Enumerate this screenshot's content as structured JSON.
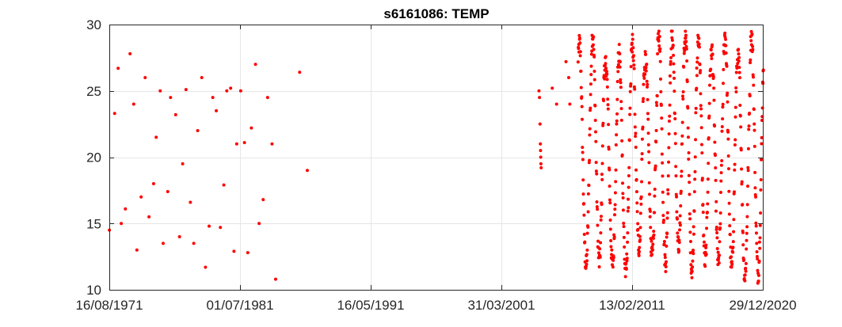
{
  "chart_data": {
    "type": "scatter",
    "title": "s6161086: TEMP",
    "xlabel": "",
    "ylabel": "",
    "x_type": "date",
    "xlim": [
      "1971-08-16",
      "2020-12-29"
    ],
    "ylim": [
      10,
      30
    ],
    "x_ticks": [
      "1971-08-16",
      "1981-07-01",
      "1991-05-16",
      "2001-03-31",
      "2011-02-13",
      "2020-12-29"
    ],
    "x_tick_labels": [
      "16/08/1971",
      "01/07/1981",
      "16/05/1991",
      "31/03/2001",
      "13/02/2011",
      "29/12/2020"
    ],
    "y_ticks": [
      10,
      15,
      20,
      25,
      30
    ],
    "y_tick_labels": [
      "10",
      "15",
      "20",
      "25",
      "30"
    ],
    "grid": true,
    "marker_color": "#ff0000",
    "series": [
      {
        "name": "",
        "points": [
          [
            "1971-08-18",
            14.5
          ],
          [
            "1972-01-10",
            23.3
          ],
          [
            "1972-04-15",
            26.7
          ],
          [
            "1972-07-10",
            15.0
          ],
          [
            "1972-11-01",
            16.1
          ],
          [
            "1973-03-10",
            27.8
          ],
          [
            "1973-06-20",
            24.0
          ],
          [
            "1973-09-15",
            13.0
          ],
          [
            "1974-01-10",
            17.0
          ],
          [
            "1974-05-01",
            26.0
          ],
          [
            "1974-08-15",
            15.5
          ],
          [
            "1974-12-20",
            18.0
          ],
          [
            "1975-03-01",
            21.5
          ],
          [
            "1975-06-20",
            25.0
          ],
          [
            "1975-09-10",
            13.5
          ],
          [
            "1976-01-15",
            17.4
          ],
          [
            "1976-04-01",
            24.5
          ],
          [
            "1976-08-20",
            23.2
          ],
          [
            "1976-12-05",
            14.0
          ],
          [
            "1977-03-01",
            19.5
          ],
          [
            "1977-06-01",
            25.1
          ],
          [
            "1977-10-01",
            16.6
          ],
          [
            "1978-01-01",
            13.5
          ],
          [
            "1978-04-20",
            22.0
          ],
          [
            "1978-08-10",
            26.0
          ],
          [
            "1978-11-20",
            11.7
          ],
          [
            "1979-03-01",
            14.8
          ],
          [
            "1979-06-10",
            24.5
          ],
          [
            "1979-09-15",
            23.5
          ],
          [
            "1980-01-05",
            14.7
          ],
          [
            "1980-04-10",
            17.9
          ],
          [
            "1980-07-01",
            25.0
          ],
          [
            "1980-10-15",
            25.2
          ],
          [
            "1981-01-15",
            12.9
          ],
          [
            "1981-04-01",
            21.0
          ],
          [
            "1981-07-20",
            25.0
          ],
          [
            "1981-11-01",
            21.1
          ],
          [
            "1982-02-01",
            12.8
          ],
          [
            "1982-05-10",
            22.2
          ],
          [
            "1982-09-01",
            27.0
          ],
          [
            "1982-12-10",
            15.0
          ],
          [
            "1983-04-01",
            16.8
          ],
          [
            "1983-08-01",
            24.5
          ],
          [
            "1983-12-01",
            21.0
          ],
          [
            "1984-03-10",
            10.8
          ],
          [
            "1986-01-01",
            26.4
          ],
          [
            "1986-08-01",
            19.0
          ],
          [
            "2004-02-01",
            25.0
          ],
          [
            "2004-02-15",
            24.5
          ],
          [
            "2004-03-01",
            22.5
          ],
          [
            "2004-03-10",
            21.0
          ],
          [
            "2004-03-15",
            20.5
          ],
          [
            "2004-03-20",
            20.0
          ],
          [
            "2004-03-25",
            19.5
          ],
          [
            "2004-04-01",
            19.2
          ],
          [
            "2005-02-01",
            25.2
          ],
          [
            "2005-06-01",
            24.0
          ],
          [
            "2006-02-15",
            27.2
          ],
          [
            "2006-05-01",
            26.0
          ],
          [
            "2006-06-01",
            24.0
          ]
        ]
      }
    ],
    "dense_segments": [
      {
        "start": "2007-01-15",
        "end": "2021-03-01",
        "period_years": 1.0,
        "high": [
          27.0,
          29.4
        ],
        "low": [
          11.0,
          13.5
        ]
      }
    ]
  }
}
